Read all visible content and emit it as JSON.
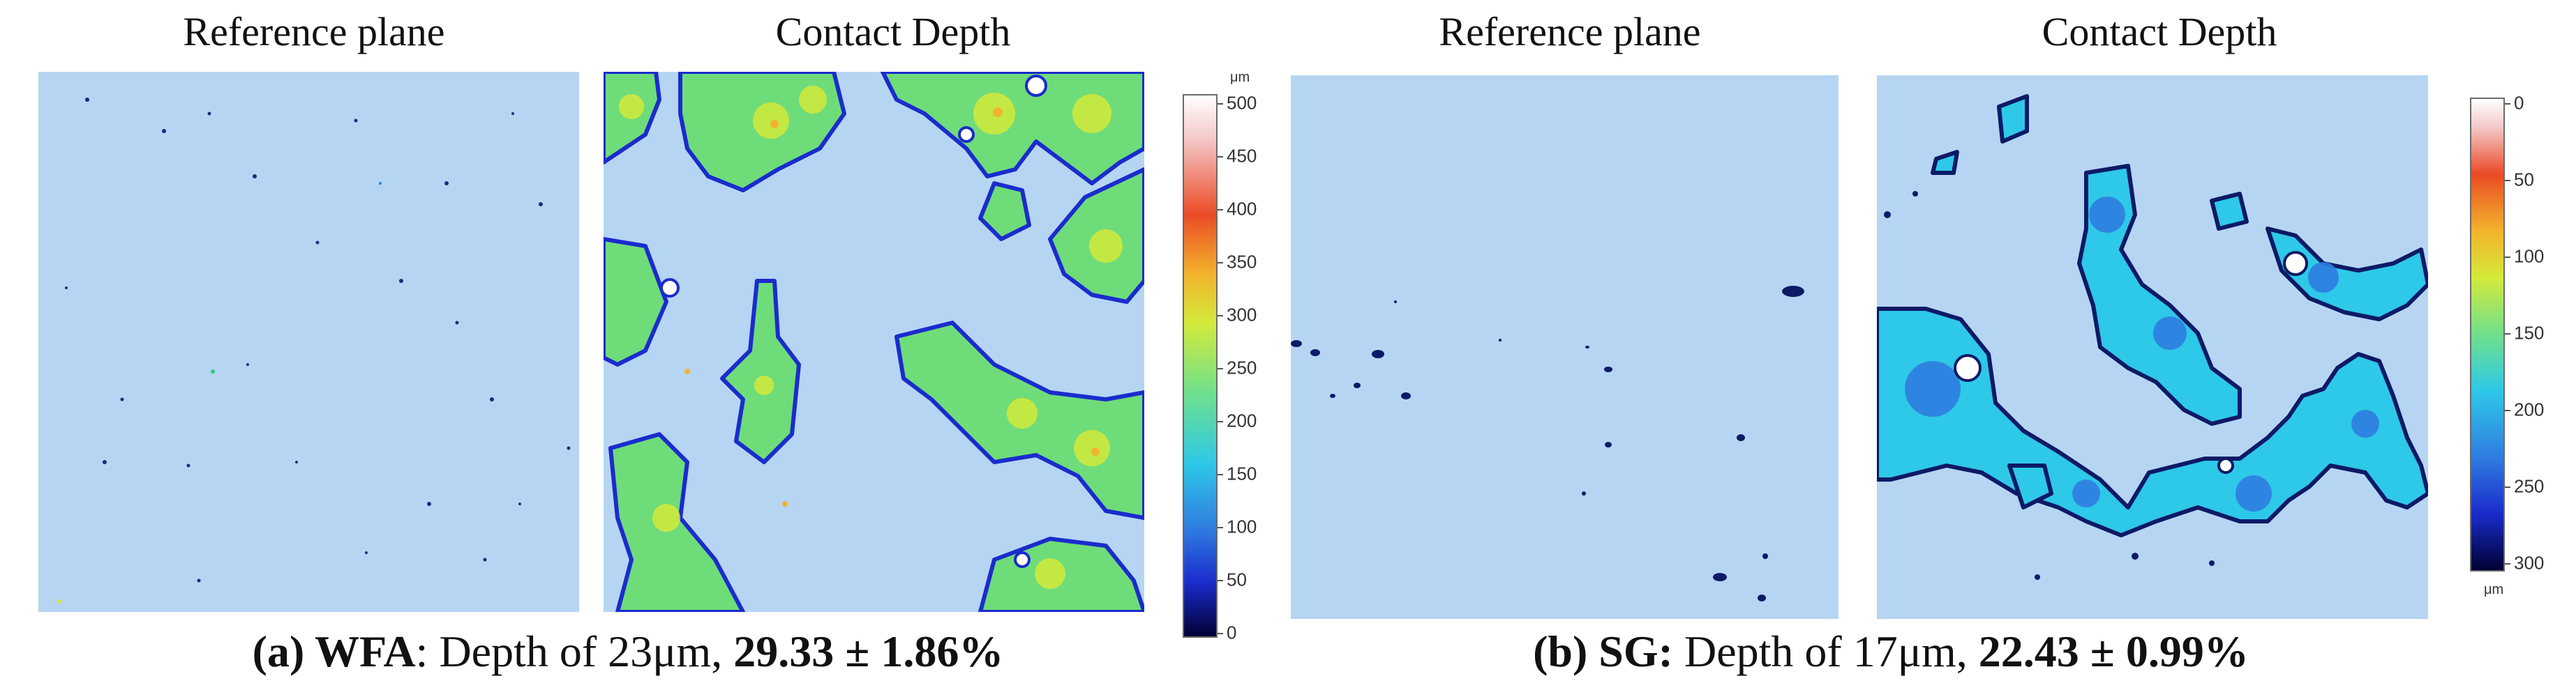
{
  "panels": {
    "a_ref_title": "Reference plane",
    "a_depth_title": "Contact Depth",
    "b_ref_title": "Reference plane",
    "b_depth_title": "Contact Depth"
  },
  "colorbar_a": {
    "unit": "μm",
    "ticks": [
      "500",
      "450",
      "400",
      "350",
      "300",
      "250",
      "200",
      "150",
      "100",
      "50",
      "0"
    ]
  },
  "colorbar_b": {
    "unit": "μm",
    "ticks": [
      "0",
      "50",
      "100",
      "150",
      "200",
      "250",
      "300"
    ]
  },
  "caption_a": {
    "label": "(a) WFA",
    "text": ": Depth of 23μm, ",
    "value": "29.33 ± 1.86%"
  },
  "caption_b": {
    "label": "(b) SG:",
    "text": " Depth of 17μm, ",
    "value": "22.43 ± 0.99%"
  },
  "colors": {
    "background_plane": "#b6d5f3",
    "colormap": [
      "#000033",
      "#1a2ccc",
      "#2f7de0",
      "#2ec8e8",
      "#6fe08c",
      "#d4ea3a",
      "#f3b32c",
      "#ea4a25",
      "#f4c8c8",
      "#ffffff"
    ]
  }
}
